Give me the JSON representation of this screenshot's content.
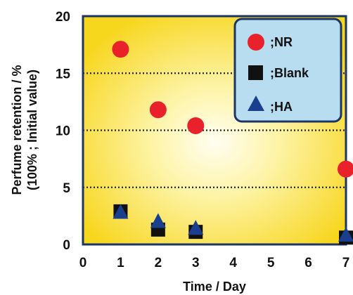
{
  "chart_data": {
    "type": "scatter",
    "title": "",
    "xlabel": "Time / Day",
    "ylabel_lines": [
      "Perfume retention / %",
      "(100% ; Initial value)"
    ],
    "xlim": [
      0,
      7
    ],
    "ylim": [
      0,
      20
    ],
    "xticks": [
      0,
      1,
      2,
      3,
      4,
      5,
      6,
      7
    ],
    "yticks": [
      0,
      5,
      10,
      15,
      20
    ],
    "gridlines_y": [
      5,
      10,
      15
    ],
    "grid_style": "dotted horizontal",
    "legend_position": "top-right",
    "background": "yellow radial gradient",
    "series": [
      {
        "name": ";NR",
        "marker": "circle",
        "color": "#e8212b",
        "x": [
          1,
          2,
          3,
          7
        ],
        "y": [
          17.1,
          11.8,
          10.4,
          6.6
        ],
        "yerr": [
          0.6,
          0.3,
          0.2,
          0.2
        ]
      },
      {
        "name": ";Blank",
        "marker": "square",
        "color": "#111111",
        "x": [
          1,
          2,
          3,
          7
        ],
        "y": [
          2.9,
          1.3,
          1.1,
          0.6
        ]
      },
      {
        "name": ";HA",
        "marker": "triangle",
        "color": "#1a3f8f",
        "x": [
          1,
          2,
          3,
          7
        ],
        "y": [
          2.8,
          2.0,
          1.4,
          0.8
        ]
      }
    ]
  },
  "colors": {
    "plot_center": "#fffef2",
    "plot_edge": "#f7d61e",
    "legend_bg": "#b8ddf0",
    "legend_border": "#1b3566",
    "frame": "#1b3566"
  }
}
